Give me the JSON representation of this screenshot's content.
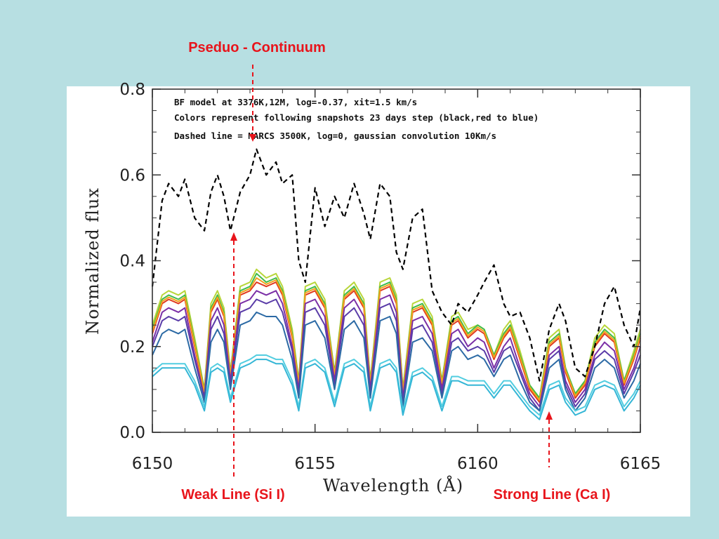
{
  "callouts": {
    "top": "Pseduo - Continuum",
    "weak": "Weak Line (Si I)",
    "strong": "Strong Line (Ca I)"
  },
  "colors": {
    "background": "#b7dfe2",
    "callout": "#e8141b"
  },
  "chart_data": {
    "type": "line",
    "xlabel": "Wavelength (Å)",
    "ylabel": "Normalized flux",
    "xlim": [
      6150,
      6165
    ],
    "ylim": [
      0.0,
      0.8
    ],
    "xticks": [
      "6150",
      "6155",
      "6160",
      "6165"
    ],
    "yticks": [
      "0.0",
      "0.2",
      "0.4",
      "0.6",
      "0.8"
    ],
    "grid": false,
    "annotations": [
      "BF model at 3376K,12M, log=-0.37, xit=1.5 km/s",
      "Colors represent following snapshots 23 days step (black,red to blue)",
      "Dashed line = MARCS 3500K, log=0, gaussian convolution 10Km/s"
    ],
    "markers": [
      {
        "label": "Pseduo - Continuum",
        "x": 6153.2,
        "y": 0.63
      },
      {
        "label": "Weak Line (Si I)",
        "x": 6152.4,
        "y": 0.47
      },
      {
        "label": "Strong Line (Ca I)",
        "x": 6161.9,
        "y": 0.04
      }
    ],
    "x": [
      6150.0,
      6150.3,
      6150.5,
      6150.8,
      6151.0,
      6151.3,
      6151.6,
      6151.8,
      6152.0,
      6152.2,
      6152.4,
      6152.7,
      6153.0,
      6153.2,
      6153.5,
      6153.8,
      6154.0,
      6154.3,
      6154.5,
      6154.7,
      6155.0,
      6155.3,
      6155.6,
      6155.9,
      6156.2,
      6156.5,
      6156.7,
      6157.0,
      6157.3,
      6157.5,
      6157.7,
      6158.0,
      6158.3,
      6158.6,
      6158.9,
      6159.2,
      6159.4,
      6159.7,
      6160.0,
      6160.2,
      6160.5,
      6160.8,
      6161.0,
      6161.3,
      6161.6,
      6161.9,
      6162.2,
      6162.5,
      6162.7,
      6163.0,
      6163.3,
      6163.6,
      6163.9,
      6164.2,
      6164.5,
      6164.8,
      6165.0
    ],
    "series": [
      {
        "style": "dashed",
        "color": "#000000",
        "values": [
          0.34,
          0.54,
          0.58,
          0.55,
          0.59,
          0.5,
          0.47,
          0.56,
          0.6,
          0.55,
          0.47,
          0.56,
          0.6,
          0.66,
          0.6,
          0.63,
          0.58,
          0.6,
          0.4,
          0.35,
          0.57,
          0.48,
          0.55,
          0.5,
          0.58,
          0.51,
          0.45,
          0.58,
          0.55,
          0.42,
          0.38,
          0.5,
          0.52,
          0.33,
          0.28,
          0.25,
          0.3,
          0.28,
          0.32,
          0.35,
          0.39,
          0.3,
          0.27,
          0.28,
          0.22,
          0.12,
          0.24,
          0.3,
          0.26,
          0.15,
          0.13,
          0.2,
          0.3,
          0.34,
          0.25,
          0.2,
          0.29
        ]
      },
      {
        "color": "#b8d63a",
        "values": [
          0.25,
          0.32,
          0.33,
          0.32,
          0.33,
          0.22,
          0.1,
          0.3,
          0.33,
          0.29,
          0.14,
          0.34,
          0.35,
          0.38,
          0.36,
          0.37,
          0.34,
          0.24,
          0.12,
          0.34,
          0.35,
          0.31,
          0.14,
          0.33,
          0.35,
          0.31,
          0.12,
          0.35,
          0.36,
          0.32,
          0.1,
          0.3,
          0.31,
          0.27,
          0.12,
          0.27,
          0.28,
          0.24,
          0.25,
          0.24,
          0.18,
          0.24,
          0.26,
          0.19,
          0.11,
          0.08,
          0.22,
          0.24,
          0.15,
          0.09,
          0.12,
          0.22,
          0.25,
          0.23,
          0.12,
          0.19,
          0.24
        ]
      },
      {
        "color": "#3fbc4a",
        "values": [
          0.24,
          0.31,
          0.32,
          0.31,
          0.32,
          0.21,
          0.1,
          0.29,
          0.32,
          0.28,
          0.14,
          0.33,
          0.34,
          0.37,
          0.35,
          0.36,
          0.33,
          0.23,
          0.12,
          0.33,
          0.34,
          0.3,
          0.14,
          0.32,
          0.34,
          0.3,
          0.12,
          0.34,
          0.35,
          0.31,
          0.1,
          0.29,
          0.3,
          0.26,
          0.12,
          0.26,
          0.27,
          0.23,
          0.25,
          0.24,
          0.18,
          0.23,
          0.25,
          0.18,
          0.11,
          0.08,
          0.21,
          0.23,
          0.15,
          0.09,
          0.12,
          0.21,
          0.24,
          0.22,
          0.12,
          0.18,
          0.23
        ]
      },
      {
        "color": "#e03b1f",
        "values": [
          0.23,
          0.3,
          0.31,
          0.3,
          0.31,
          0.2,
          0.09,
          0.28,
          0.31,
          0.27,
          0.13,
          0.32,
          0.33,
          0.35,
          0.34,
          0.35,
          0.32,
          0.22,
          0.11,
          0.32,
          0.33,
          0.29,
          0.13,
          0.31,
          0.33,
          0.29,
          0.11,
          0.33,
          0.34,
          0.3,
          0.09,
          0.28,
          0.29,
          0.25,
          0.11,
          0.25,
          0.26,
          0.22,
          0.24,
          0.23,
          0.17,
          0.22,
          0.24,
          0.17,
          0.1,
          0.07,
          0.2,
          0.22,
          0.14,
          0.08,
          0.11,
          0.2,
          0.23,
          0.21,
          0.11,
          0.17,
          0.22
        ]
      },
      {
        "color": "#f2a21c",
        "values": [
          0.235,
          0.305,
          0.315,
          0.305,
          0.315,
          0.205,
          0.095,
          0.285,
          0.315,
          0.275,
          0.135,
          0.325,
          0.335,
          0.36,
          0.345,
          0.355,
          0.325,
          0.225,
          0.115,
          0.325,
          0.335,
          0.295,
          0.135,
          0.315,
          0.335,
          0.295,
          0.115,
          0.335,
          0.345,
          0.305,
          0.095,
          0.285,
          0.295,
          0.255,
          0.115,
          0.255,
          0.265,
          0.225,
          0.245,
          0.235,
          0.175,
          0.225,
          0.245,
          0.175,
          0.105,
          0.075,
          0.205,
          0.225,
          0.145,
          0.085,
          0.115,
          0.205,
          0.235,
          0.215,
          0.115,
          0.175,
          0.225
        ]
      },
      {
        "color": "#7b2fa6",
        "values": [
          0.21,
          0.28,
          0.29,
          0.28,
          0.29,
          0.18,
          0.08,
          0.26,
          0.29,
          0.25,
          0.12,
          0.3,
          0.31,
          0.33,
          0.32,
          0.33,
          0.3,
          0.2,
          0.1,
          0.3,
          0.31,
          0.27,
          0.12,
          0.29,
          0.31,
          0.27,
          0.1,
          0.31,
          0.32,
          0.28,
          0.08,
          0.26,
          0.27,
          0.23,
          0.1,
          0.23,
          0.24,
          0.2,
          0.22,
          0.21,
          0.15,
          0.2,
          0.22,
          0.15,
          0.09,
          0.06,
          0.18,
          0.2,
          0.12,
          0.07,
          0.1,
          0.18,
          0.21,
          0.19,
          0.1,
          0.15,
          0.2
        ]
      },
      {
        "color": "#5a3ca8",
        "values": [
          0.2,
          0.26,
          0.27,
          0.26,
          0.27,
          0.17,
          0.08,
          0.24,
          0.27,
          0.23,
          0.11,
          0.28,
          0.29,
          0.31,
          0.3,
          0.31,
          0.28,
          0.19,
          0.09,
          0.28,
          0.29,
          0.25,
          0.11,
          0.27,
          0.29,
          0.25,
          0.09,
          0.29,
          0.3,
          0.26,
          0.07,
          0.24,
          0.25,
          0.21,
          0.09,
          0.21,
          0.22,
          0.19,
          0.2,
          0.19,
          0.14,
          0.19,
          0.2,
          0.14,
          0.08,
          0.05,
          0.17,
          0.19,
          0.11,
          0.06,
          0.09,
          0.17,
          0.19,
          0.17,
          0.09,
          0.14,
          0.18
        ]
      },
      {
        "color": "#2c6aa5",
        "values": [
          0.18,
          0.23,
          0.24,
          0.23,
          0.24,
          0.15,
          0.07,
          0.21,
          0.24,
          0.21,
          0.1,
          0.25,
          0.26,
          0.28,
          0.27,
          0.27,
          0.25,
          0.17,
          0.08,
          0.25,
          0.26,
          0.22,
          0.1,
          0.24,
          0.26,
          0.22,
          0.08,
          0.26,
          0.27,
          0.23,
          0.06,
          0.21,
          0.22,
          0.19,
          0.08,
          0.19,
          0.2,
          0.17,
          0.18,
          0.17,
          0.13,
          0.17,
          0.18,
          0.12,
          0.07,
          0.05,
          0.15,
          0.17,
          0.1,
          0.05,
          0.08,
          0.15,
          0.17,
          0.15,
          0.08,
          0.12,
          0.16
        ]
      },
      {
        "color": "#52cde0",
        "values": [
          0.14,
          0.16,
          0.16,
          0.16,
          0.16,
          0.12,
          0.06,
          0.15,
          0.16,
          0.15,
          0.08,
          0.16,
          0.17,
          0.18,
          0.18,
          0.17,
          0.17,
          0.12,
          0.06,
          0.16,
          0.17,
          0.15,
          0.07,
          0.16,
          0.17,
          0.15,
          0.06,
          0.16,
          0.17,
          0.15,
          0.05,
          0.14,
          0.15,
          0.13,
          0.06,
          0.13,
          0.13,
          0.12,
          0.12,
          0.12,
          0.09,
          0.12,
          0.12,
          0.09,
          0.06,
          0.04,
          0.11,
          0.12,
          0.08,
          0.05,
          0.06,
          0.11,
          0.12,
          0.11,
          0.06,
          0.09,
          0.12
        ]
      },
      {
        "color": "#34b6d6",
        "values": [
          0.13,
          0.15,
          0.15,
          0.15,
          0.15,
          0.11,
          0.05,
          0.14,
          0.15,
          0.14,
          0.07,
          0.15,
          0.16,
          0.17,
          0.17,
          0.16,
          0.16,
          0.11,
          0.05,
          0.15,
          0.16,
          0.14,
          0.06,
          0.15,
          0.16,
          0.14,
          0.05,
          0.15,
          0.16,
          0.14,
          0.04,
          0.13,
          0.14,
          0.12,
          0.05,
          0.12,
          0.12,
          0.11,
          0.11,
          0.11,
          0.08,
          0.11,
          0.11,
          0.08,
          0.05,
          0.03,
          0.1,
          0.11,
          0.07,
          0.04,
          0.05,
          0.1,
          0.11,
          0.1,
          0.05,
          0.08,
          0.11
        ]
      }
    ]
  }
}
